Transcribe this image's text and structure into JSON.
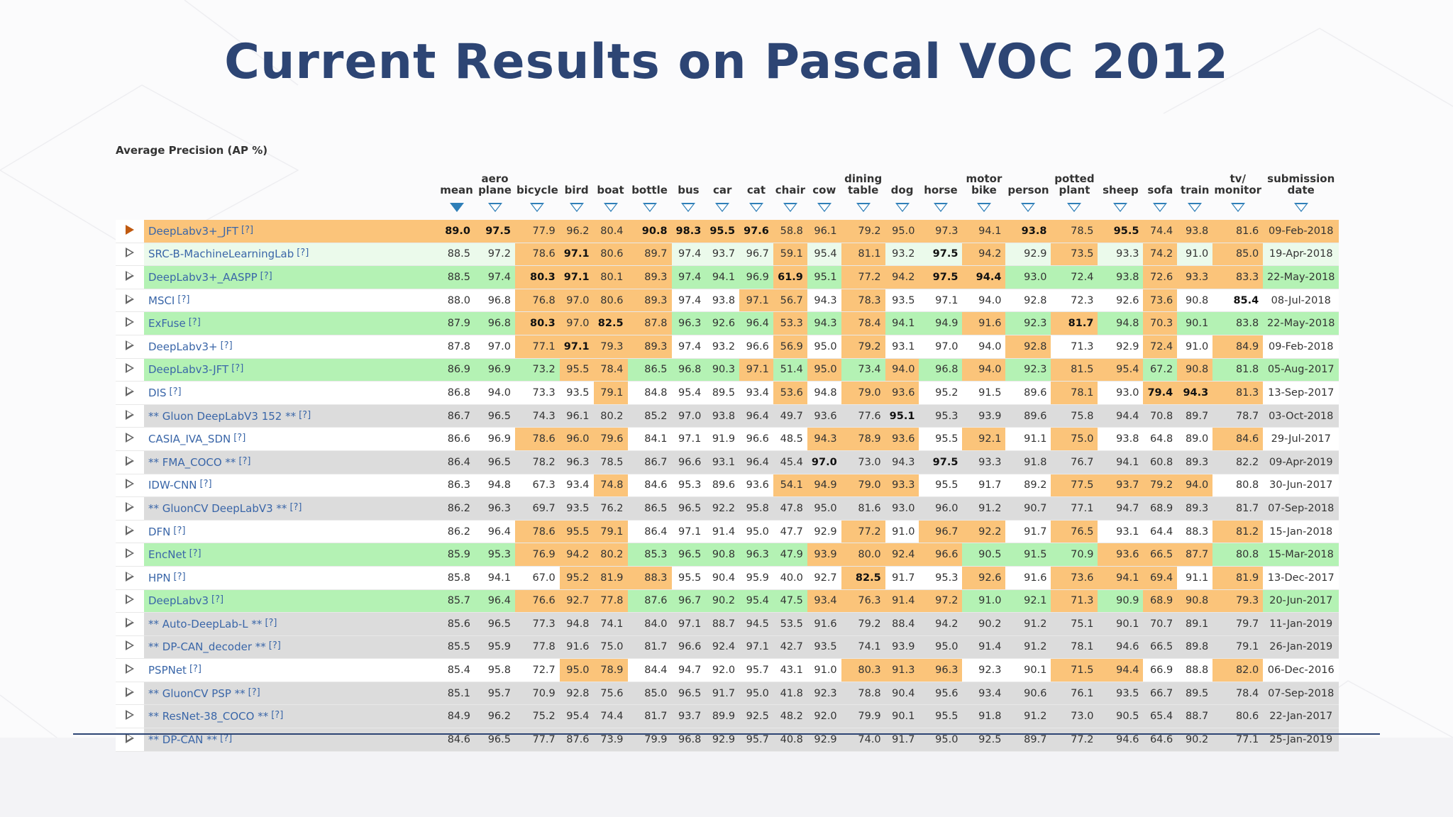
{
  "slide": {
    "title": "Current Results on Pascal VOC 2012",
    "subtitle": "Average Precision (AP %)"
  },
  "colors": {
    "title": "#2d4574",
    "highlight_orange": "#fbc47a",
    "highlight_green": "#b4f2b4",
    "row_green": "#ebfaeb",
    "row_gray": "#dcdcdc",
    "link_blue": "#3a66a8",
    "sort_arrow": "#2f7fb8"
  },
  "columns": [
    {
      "key": "mean",
      "label": "mean"
    },
    {
      "key": "aeroplane",
      "label": "aero plane"
    },
    {
      "key": "bicycle",
      "label": "bicycle"
    },
    {
      "key": "bird",
      "label": "bird"
    },
    {
      "key": "boat",
      "label": "boat"
    },
    {
      "key": "bottle",
      "label": "bottle"
    },
    {
      "key": "bus",
      "label": "bus"
    },
    {
      "key": "car",
      "label": "car"
    },
    {
      "key": "cat",
      "label": "cat"
    },
    {
      "key": "chair",
      "label": "chair"
    },
    {
      "key": "cow",
      "label": "cow"
    },
    {
      "key": "diningtable",
      "label": "dining table"
    },
    {
      "key": "dog",
      "label": "dog"
    },
    {
      "key": "horse",
      "label": "horse"
    },
    {
      "key": "motorbike",
      "label": "motor bike"
    },
    {
      "key": "person",
      "label": "person"
    },
    {
      "key": "pottedplant",
      "label": "potted plant"
    },
    {
      "key": "sheep",
      "label": "sheep"
    },
    {
      "key": "sofa",
      "label": "sofa"
    },
    {
      "key": "train",
      "label": "train"
    },
    {
      "key": "tvmonitor",
      "label": "tv/ monitor"
    },
    {
      "key": "date",
      "label": "submission date"
    }
  ],
  "help_marker": "[?]",
  "rows": [
    {
      "name": "DeepLabv3+_JFT",
      "style": "orange",
      "selected": true,
      "values": [
        "89.0",
        "97.5",
        "77.9",
        "96.2",
        "80.4",
        "90.8",
        "98.3",
        "95.5",
        "97.6",
        "58.8",
        "96.1",
        "79.2",
        "95.0",
        "97.3",
        "94.1",
        "93.8",
        "78.5",
        "95.5",
        "74.4",
        "93.8",
        "81.6"
      ],
      "date": "09-Feb-2018",
      "bold": [
        0,
        1,
        5,
        6,
        7,
        8,
        15,
        17
      ]
    },
    {
      "name": "SRC-B-MachineLearningLab",
      "style": "green-light",
      "values": [
        "88.5",
        "97.2",
        "78.6",
        "97.1",
        "80.6",
        "89.7",
        "97.4",
        "93.7",
        "96.7",
        "59.1",
        "95.4",
        "81.1",
        "93.2",
        "97.5",
        "94.2",
        "92.9",
        "73.5",
        "93.3",
        "74.2",
        "91.0",
        "85.0"
      ],
      "date": "19-Apr-2018",
      "bold": [
        3,
        13
      ],
      "orange": [
        2,
        3,
        4,
        5,
        9,
        11,
        14,
        16,
        18,
        20
      ],
      "green": []
    },
    {
      "name": "DeepLabv3+_AASPP",
      "style": "green",
      "values": [
        "88.5",
        "97.4",
        "80.3",
        "97.1",
        "80.1",
        "89.3",
        "97.4",
        "94.1",
        "96.9",
        "61.9",
        "95.1",
        "77.2",
        "94.2",
        "97.5",
        "94.4",
        "93.0",
        "72.4",
        "93.8",
        "72.6",
        "93.3",
        "83.3"
      ],
      "date": "22-May-2018",
      "bold": [
        2,
        3,
        9,
        13,
        14
      ],
      "orange": [
        2,
        3,
        4,
        5,
        9,
        11,
        12,
        13,
        14,
        18,
        19,
        20
      ],
      "green": [
        16
      ]
    },
    {
      "name": "MSCI",
      "style": "white",
      "values": [
        "88.0",
        "96.8",
        "76.8",
        "97.0",
        "80.6",
        "89.3",
        "97.4",
        "93.8",
        "97.1",
        "56.7",
        "94.3",
        "78.3",
        "93.5",
        "97.1",
        "94.0",
        "92.8",
        "72.3",
        "92.6",
        "73.6",
        "90.8",
        "85.4"
      ],
      "date": "08-Jul-2018",
      "bold": [
        20
      ],
      "orange": [
        2,
        3,
        4,
        5,
        8,
        9,
        11,
        18
      ],
      "green": []
    },
    {
      "name": "ExFuse",
      "style": "green",
      "values": [
        "87.9",
        "96.8",
        "80.3",
        "97.0",
        "82.5",
        "87.8",
        "96.3",
        "92.6",
        "96.4",
        "53.3",
        "94.3",
        "78.4",
        "94.1",
        "94.9",
        "91.6",
        "92.3",
        "81.7",
        "94.8",
        "70.3",
        "90.1",
        "83.8"
      ],
      "date": "22-May-2018",
      "bold": [
        2,
        4,
        16
      ],
      "orange": [
        2,
        3,
        4,
        5,
        9,
        11,
        14,
        16,
        18
      ],
      "green": [
        15
      ]
    },
    {
      "name": "DeepLabv3+",
      "style": "white",
      "values": [
        "87.8",
        "97.0",
        "77.1",
        "97.1",
        "79.3",
        "89.3",
        "97.4",
        "93.2",
        "96.6",
        "56.9",
        "95.0",
        "79.2",
        "93.1",
        "97.0",
        "94.0",
        "92.8",
        "71.3",
        "92.9",
        "72.4",
        "91.0",
        "84.9"
      ],
      "date": "09-Feb-2018",
      "bold": [
        3
      ],
      "orange": [
        2,
        3,
        4,
        5,
        9,
        11,
        15,
        18,
        20
      ],
      "green": []
    },
    {
      "name": "DeepLabv3-JFT",
      "style": "green",
      "values": [
        "86.9",
        "96.9",
        "73.2",
        "95.5",
        "78.4",
        "86.5",
        "96.8",
        "90.3",
        "97.1",
        "51.4",
        "95.0",
        "73.4",
        "94.0",
        "96.8",
        "94.0",
        "92.3",
        "81.5",
        "95.4",
        "67.2",
        "90.8",
        "81.8"
      ],
      "date": "05-Aug-2017",
      "bold": [],
      "orange": [
        3,
        4,
        8,
        10,
        12,
        14,
        16,
        17,
        19
      ],
      "green": [
        2,
        11,
        15,
        18
      ]
    },
    {
      "name": "DIS",
      "style": "white",
      "values": [
        "86.8",
        "94.0",
        "73.3",
        "93.5",
        "79.1",
        "84.8",
        "95.4",
        "89.5",
        "93.4",
        "53.6",
        "94.8",
        "79.0",
        "93.6",
        "95.2",
        "91.5",
        "89.6",
        "78.1",
        "93.0",
        "79.4",
        "94.3",
        "81.3"
      ],
      "date": "13-Sep-2017",
      "bold": [
        18,
        19
      ],
      "orange": [
        4,
        9,
        11,
        12,
        16,
        18,
        19,
        20
      ],
      "green": []
    },
    {
      "name": "** Gluon DeepLabV3 152 **",
      "style": "gray",
      "values": [
        "86.7",
        "96.5",
        "74.3",
        "96.1",
        "80.2",
        "85.2",
        "97.0",
        "93.8",
        "96.4",
        "49.7",
        "93.6",
        "77.6",
        "95.1",
        "95.3",
        "93.9",
        "89.6",
        "75.8",
        "94.4",
        "70.8",
        "89.7",
        "78.7"
      ],
      "date": "03-Oct-2018",
      "bold": [
        12
      ],
      "orange": [],
      "green": []
    },
    {
      "name": "CASIA_IVA_SDN",
      "style": "white",
      "values": [
        "86.6",
        "96.9",
        "78.6",
        "96.0",
        "79.6",
        "84.1",
        "97.1",
        "91.9",
        "96.6",
        "48.5",
        "94.3",
        "78.9",
        "93.6",
        "95.5",
        "92.1",
        "91.1",
        "75.0",
        "93.8",
        "64.8",
        "89.0",
        "84.6"
      ],
      "date": "29-Jul-2017",
      "bold": [],
      "orange": [
        2,
        3,
        4,
        10,
        11,
        12,
        14,
        16,
        20
      ],
      "green": []
    },
    {
      "name": "** FMA_COCO **",
      "style": "gray",
      "values": [
        "86.4",
        "96.5",
        "78.2",
        "96.3",
        "78.5",
        "86.7",
        "96.6",
        "93.1",
        "96.4",
        "45.4",
        "97.0",
        "73.0",
        "94.3",
        "97.5",
        "93.3",
        "91.8",
        "76.7",
        "94.1",
        "60.8",
        "89.3",
        "82.2"
      ],
      "date": "09-Apr-2019",
      "bold": [
        10,
        13
      ],
      "orange": [],
      "green": []
    },
    {
      "name": "IDW-CNN",
      "style": "white",
      "values": [
        "86.3",
        "94.8",
        "67.3",
        "93.4",
        "74.8",
        "84.6",
        "95.3",
        "89.6",
        "93.6",
        "54.1",
        "94.9",
        "79.0",
        "93.3",
        "95.5",
        "91.7",
        "89.2",
        "77.5",
        "93.7",
        "79.2",
        "94.0",
        "80.8"
      ],
      "date": "30-Jun-2017",
      "bold": [],
      "orange": [
        4,
        9,
        10,
        11,
        12,
        16,
        17,
        18,
        19
      ],
      "green": []
    },
    {
      "name": "** GluonCV DeepLabV3 **",
      "style": "gray",
      "values": [
        "86.2",
        "96.3",
        "69.7",
        "93.5",
        "76.2",
        "86.5",
        "96.5",
        "92.2",
        "95.8",
        "47.8",
        "95.0",
        "81.6",
        "93.0",
        "96.0",
        "91.2",
        "90.7",
        "77.1",
        "94.7",
        "68.9",
        "89.3",
        "81.7"
      ],
      "date": "07-Sep-2018",
      "bold": [],
      "orange": [],
      "green": []
    },
    {
      "name": "DFN",
      "style": "white",
      "values": [
        "86.2",
        "96.4",
        "78.6",
        "95.5",
        "79.1",
        "86.4",
        "97.1",
        "91.4",
        "95.0",
        "47.7",
        "92.9",
        "77.2",
        "91.0",
        "96.7",
        "92.2",
        "91.7",
        "76.5",
        "93.1",
        "64.4",
        "88.3",
        "81.2"
      ],
      "date": "15-Jan-2018",
      "bold": [],
      "orange": [
        2,
        3,
        4,
        11,
        13,
        14,
        16,
        20
      ],
      "green": []
    },
    {
      "name": "EncNet",
      "style": "green",
      "values": [
        "85.9",
        "95.3",
        "76.9",
        "94.2",
        "80.2",
        "85.3",
        "96.5",
        "90.8",
        "96.3",
        "47.9",
        "93.9",
        "80.0",
        "92.4",
        "96.6",
        "90.5",
        "91.5",
        "70.9",
        "93.6",
        "66.5",
        "87.7",
        "80.8"
      ],
      "date": "15-Mar-2018",
      "bold": [],
      "orange": [
        2,
        3,
        4,
        10,
        11,
        12,
        13,
        17,
        18,
        19
      ],
      "green": [
        14,
        15
      ]
    },
    {
      "name": "HPN",
      "style": "white",
      "values": [
        "85.8",
        "94.1",
        "67.0",
        "95.2",
        "81.9",
        "88.3",
        "95.5",
        "90.4",
        "95.9",
        "40.0",
        "92.7",
        "82.5",
        "91.7",
        "95.3",
        "92.6",
        "91.6",
        "73.6",
        "94.1",
        "69.4",
        "91.1",
        "81.9"
      ],
      "date": "13-Dec-2017",
      "bold": [
        11
      ],
      "orange": [
        3,
        4,
        5,
        11,
        14,
        16,
        17,
        18,
        20
      ],
      "green": []
    },
    {
      "name": "DeepLabv3",
      "style": "green",
      "values": [
        "85.7",
        "96.4",
        "76.6",
        "92.7",
        "77.8",
        "87.6",
        "96.7",
        "90.2",
        "95.4",
        "47.5",
        "93.4",
        "76.3",
        "91.4",
        "97.2",
        "91.0",
        "92.1",
        "71.3",
        "90.9",
        "68.9",
        "90.8",
        "79.3"
      ],
      "date": "20-Jun-2017",
      "bold": [],
      "orange": [
        2,
        3,
        4,
        10,
        11,
        12,
        13,
        16,
        18,
        19,
        20
      ],
      "green": []
    },
    {
      "name": "** Auto-DeepLab-L **",
      "style": "gray",
      "values": [
        "85.6",
        "96.5",
        "77.3",
        "94.8",
        "74.1",
        "84.0",
        "97.1",
        "88.7",
        "94.5",
        "53.5",
        "91.6",
        "79.2",
        "88.4",
        "94.2",
        "90.2",
        "91.2",
        "75.1",
        "90.1",
        "70.7",
        "89.1",
        "79.7"
      ],
      "date": "11-Jan-2019",
      "bold": [],
      "orange": [],
      "green": []
    },
    {
      "name": "** DP-CAN_decoder **",
      "style": "gray",
      "values": [
        "85.5",
        "95.9",
        "77.8",
        "91.6",
        "75.0",
        "81.7",
        "96.6",
        "92.4",
        "97.1",
        "42.7",
        "93.5",
        "74.1",
        "93.9",
        "95.0",
        "91.4",
        "91.2",
        "78.1",
        "94.6",
        "66.5",
        "89.8",
        "79.1"
      ],
      "date": "26-Jan-2019",
      "bold": [],
      "orange": [],
      "green": []
    },
    {
      "name": "PSPNet",
      "style": "white",
      "values": [
        "85.4",
        "95.8",
        "72.7",
        "95.0",
        "78.9",
        "84.4",
        "94.7",
        "92.0",
        "95.7",
        "43.1",
        "91.0",
        "80.3",
        "91.3",
        "96.3",
        "92.3",
        "90.1",
        "71.5",
        "94.4",
        "66.9",
        "88.8",
        "82.0"
      ],
      "date": "06-Dec-2016",
      "bold": [],
      "orange": [
        3,
        4,
        11,
        12,
        13,
        16,
        17,
        20
      ],
      "green": []
    },
    {
      "name": "** GluonCV PSP **",
      "style": "gray",
      "values": [
        "85.1",
        "95.7",
        "70.9",
        "92.8",
        "75.6",
        "85.0",
        "96.5",
        "91.7",
        "95.0",
        "41.8",
        "92.3",
        "78.8",
        "90.4",
        "95.6",
        "93.4",
        "90.6",
        "76.1",
        "93.5",
        "66.7",
        "89.5",
        "78.4"
      ],
      "date": "07-Sep-2018",
      "bold": [],
      "orange": [],
      "green": []
    },
    {
      "name": "** ResNet-38_COCO **",
      "style": "gray",
      "values": [
        "84.9",
        "96.2",
        "75.2",
        "95.4",
        "74.4",
        "81.7",
        "93.7",
        "89.9",
        "92.5",
        "48.2",
        "92.0",
        "79.9",
        "90.1",
        "95.5",
        "91.8",
        "91.2",
        "73.0",
        "90.5",
        "65.4",
        "88.7",
        "80.6"
      ],
      "date": "22-Jan-2017",
      "bold": [],
      "orange": [],
      "green": []
    },
    {
      "name": "** DP-CAN **",
      "style": "gray",
      "values": [
        "84.6",
        "96.5",
        "77.7",
        "87.6",
        "73.9",
        "79.9",
        "96.8",
        "92.9",
        "95.7",
        "40.8",
        "92.9",
        "74.0",
        "91.7",
        "95.0",
        "92.5",
        "89.7",
        "77.2",
        "94.6",
        "64.6",
        "90.2",
        "77.1"
      ],
      "date": "25-Jan-2019",
      "bold": [],
      "orange": [],
      "green": []
    }
  ]
}
